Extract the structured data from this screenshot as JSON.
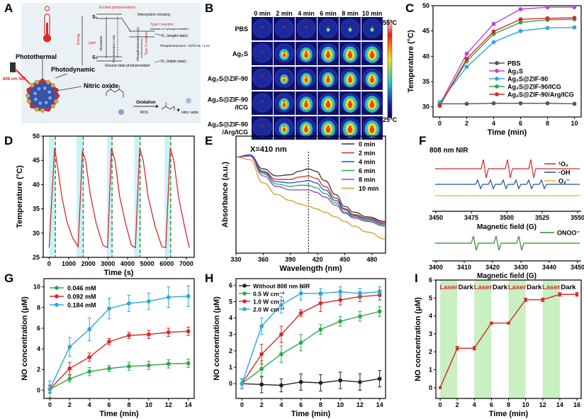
{
  "chart_data": [
    {
      "id": "A",
      "type": "diagram",
      "panel_label": "A",
      "labels": {
        "photothermal": "Photothermal",
        "photodynamic": "Photodynamic",
        "nitric_oxide": "Nitric oxide",
        "laser": "808 nm NIR",
        "s1": "S₁",
        "s0": "S₀",
        "excited": "Excited photosensitizer",
        "isc": "Intersystem crossing",
        "light": "Light",
        "absorption": "Absorption",
        "fluorescence": "Fluorescence (~ns)",
        "phosphorescence": "Phosphorescence (~μs)",
        "ground": "Ground state photosensitizer",
        "type1": "Type I reaction",
        "type1_sub": "(electron or hydrogen transfer)",
        "type2": "Type II reaction",
        "energy": "Energy",
        "o2_singlet": "¹O₂ (singlet state)",
        "o2_triplet": "³O₂ (triplet state)",
        "phos_detail": "Phosphorescence ~1270 nm ~1 ev",
        "oxidation": "Oxidation",
        "ros": "ROS",
        "no_label": "nitric oxide"
      }
    },
    {
      "id": "B",
      "type": "heatmap",
      "panel_label": "B",
      "time_labels": [
        "0 min",
        "2 min",
        "4 min",
        "6 min",
        "8 min",
        "10 min"
      ],
      "row_labels": [
        "PBS",
        "Ag₂S",
        "Ag₂S@ZIF-90",
        "Ag₂S@ZIF-90 /ICG",
        "Ag₂S@ZIF-90 /Arg/ICG"
      ],
      "intensity": [
        [
          0.0,
          0.03,
          0.05,
          0.07,
          0.08,
          0.09
        ],
        [
          0.0,
          0.55,
          0.75,
          0.85,
          0.88,
          0.9
        ],
        [
          0.0,
          0.45,
          0.65,
          0.75,
          0.8,
          0.8
        ],
        [
          0.0,
          0.6,
          0.8,
          0.88,
          0.9,
          0.9
        ],
        [
          0.0,
          0.6,
          0.78,
          0.88,
          0.9,
          0.92
        ]
      ],
      "colorbar_max": "55°C",
      "colorbar_min": "25°C"
    },
    {
      "id": "C",
      "type": "line",
      "panel_label": "C",
      "xlabel": "Time (min)",
      "ylabel": "Temperature (°C)",
      "xlim": [
        -0.5,
        10.5
      ],
      "ylim": [
        28,
        50
      ],
      "xticks": [
        0,
        2,
        4,
        6,
        8,
        10
      ],
      "yticks": [
        30,
        35,
        40,
        45,
        50
      ],
      "x": [
        0,
        2,
        4,
        6,
        8,
        10
      ],
      "series": [
        {
          "name": "PBS",
          "color": "#555555",
          "values": [
            30.6,
            30.6,
            30.7,
            30.7,
            30.7,
            30.6
          ]
        },
        {
          "name": "Ag₂S",
          "color": "#b845d8",
          "values": [
            30.5,
            40.5,
            46.4,
            49.3,
            49.7,
            49.7
          ]
        },
        {
          "name": "Ag₂S@ZIF-90",
          "color": "#2ca8d8",
          "values": [
            30.9,
            37.9,
            42.8,
            45.0,
            45.6,
            45.7
          ]
        },
        {
          "name": "Ag₂S@ZIF-90/ICG",
          "color": "#2ea84a",
          "values": [
            30.4,
            39.0,
            44.4,
            46.7,
            47.2,
            47.3
          ]
        },
        {
          "name": "Ag₂S@ZIF-90/Arg/ICG",
          "color": "#d82828",
          "values": [
            30.2,
            39.5,
            44.9,
            47.3,
            47.5,
            47.6
          ]
        }
      ]
    },
    {
      "id": "D",
      "type": "line",
      "panel_label": "D",
      "xlabel": "Time (s)",
      "ylabel": "Temperature (°C)",
      "xlim": [
        -300,
        7400
      ],
      "ylim": [
        25,
        50
      ],
      "xticks": [
        0,
        1000,
        2000,
        3000,
        4000,
        5000,
        6000,
        7000
      ],
      "yticks": [
        25,
        30,
        35,
        40,
        45,
        50
      ],
      "x": [
        0,
        280,
        420,
        650,
        900,
        1200,
        1480,
        1700,
        1860,
        2100,
        2400,
        2750,
        2980,
        3180,
        3360,
        3600,
        3900,
        4200,
        4400,
        4620,
        4800,
        5050,
        5400,
        5750,
        5950,
        6180,
        6360,
        6600,
        6900,
        7150
      ],
      "series": [
        {
          "name": "temperature",
          "color": "#d82828",
          "values": [
            27.0,
            47.5,
            44.0,
            37.5,
            32.5,
            29.0,
            27.2,
            47.0,
            45.0,
            38.0,
            32.0,
            27.5,
            27.0,
            47.5,
            45.0,
            37.5,
            32.0,
            27.5,
            27.0,
            47.5,
            45.0,
            37.5,
            31.5,
            27.2,
            27.0,
            47.5,
            45.0,
            37.5,
            31.5,
            27.0
          ]
        }
      ],
      "laser_on": [
        [
          0,
          320
        ],
        [
          1400,
          1740
        ],
        [
          2950,
          3210
        ],
        [
          4350,
          4640
        ],
        [
          5900,
          6200
        ]
      ],
      "dashed_lines": [
        320,
        1740,
        3210,
        4640,
        6200
      ]
    },
    {
      "id": "E",
      "type": "line",
      "panel_label": "E",
      "xlabel": "Wavelength (nm)",
      "ylabel": "Absorbance (a.u.)",
      "xlim": [
        330,
        495
      ],
      "ylim": [
        0,
        1
      ],
      "xticks": [
        330,
        360,
        390,
        420,
        450,
        480
      ],
      "annotation": "X=410 nm",
      "series": [
        {
          "name": "0 min",
          "color": "#333333",
          "x": [
            330,
            345,
            360,
            375,
            390,
            400,
            410,
            418,
            428,
            440,
            450,
            460,
            475,
            495
          ],
          "values": [
            0.82,
            0.84,
            0.72,
            0.66,
            0.67,
            0.7,
            0.72,
            0.7,
            0.62,
            0.5,
            0.4,
            0.35,
            0.31,
            0.27
          ]
        },
        {
          "name": "2 min",
          "color": "#d82828",
          "x": [
            330,
            345,
            360,
            375,
            390,
            400,
            410,
            418,
            428,
            440,
            450,
            460,
            475,
            495
          ],
          "values": [
            0.82,
            0.84,
            0.7,
            0.63,
            0.63,
            0.65,
            0.66,
            0.64,
            0.57,
            0.47,
            0.38,
            0.33,
            0.3,
            0.26
          ]
        },
        {
          "name": "4 min",
          "color": "#1f52c8",
          "x": [
            330,
            345,
            360,
            375,
            390,
            400,
            410,
            418,
            428,
            440,
            450,
            460,
            475,
            495
          ],
          "values": [
            0.82,
            0.84,
            0.69,
            0.61,
            0.6,
            0.61,
            0.62,
            0.6,
            0.54,
            0.45,
            0.37,
            0.32,
            0.29,
            0.25
          ]
        },
        {
          "name": "6 min",
          "color": "#2ea84a",
          "x": [
            330,
            345,
            360,
            375,
            390,
            400,
            410,
            418,
            428,
            440,
            450,
            460,
            475,
            495
          ],
          "values": [
            0.82,
            0.83,
            0.68,
            0.59,
            0.57,
            0.58,
            0.58,
            0.56,
            0.51,
            0.43,
            0.35,
            0.31,
            0.28,
            0.24
          ]
        },
        {
          "name": "8 min",
          "color": "#9b3fc8",
          "x": [
            330,
            345,
            360,
            375,
            390,
            400,
            410,
            418,
            428,
            440,
            450,
            460,
            475,
            495
          ],
          "values": [
            0.82,
            0.83,
            0.66,
            0.57,
            0.54,
            0.54,
            0.54,
            0.52,
            0.48,
            0.41,
            0.34,
            0.3,
            0.27,
            0.23
          ]
        },
        {
          "name": "10 min",
          "color": "#c8a028",
          "x": [
            330,
            345,
            360,
            375,
            390,
            400,
            410,
            418,
            428,
            440,
            450,
            460,
            475,
            495
          ],
          "values": [
            0.82,
            0.8,
            0.6,
            0.5,
            0.45,
            0.42,
            0.4,
            0.38,
            0.35,
            0.31,
            0.27,
            0.23,
            0.18,
            0.12
          ]
        }
      ]
    },
    {
      "id": "F",
      "type": "line",
      "panel_label": "F",
      "title": "808 nm NIR",
      "xlabel_top": "Magnetic field (G)",
      "xlabel_bottom": "Magnetic field (G)",
      "top_xticks": [
        3450,
        3475,
        3500,
        3525,
        3550
      ],
      "bottom_xticks": [
        3400,
        3410,
        3420,
        3430,
        3440,
        3450
      ],
      "legend_top": [
        {
          "name": "¹O₂",
          "color": "#d82828"
        },
        {
          "name": "·OH",
          "color": "#1f52a8"
        },
        {
          "name": "O₂⁻",
          "color": "#e8b020"
        }
      ],
      "legend_bottom": [
        {
          "name": "ONOO⁻",
          "color": "#2a8a2a"
        }
      ]
    },
    {
      "id": "G",
      "type": "line",
      "panel_label": "G",
      "xlabel": "Time (min)",
      "ylabel": "NO concentration (μM)",
      "xlim": [
        -0.6,
        14.6
      ],
      "ylim": [
        -0.8,
        10.8
      ],
      "xticks": [
        0,
        2,
        4,
        6,
        8,
        10,
        12,
        14
      ],
      "yticks": [
        0,
        2,
        4,
        6,
        8,
        10
      ],
      "x": [
        0,
        2,
        4,
        6,
        8,
        10,
        12,
        14
      ],
      "series": [
        {
          "name": "0.046 mM",
          "color": "#2ea84a",
          "values": [
            0.1,
            1.1,
            1.8,
            2.1,
            2.3,
            2.4,
            2.55,
            2.6
          ],
          "err": [
            0.3,
            0.3,
            0.4,
            0.3,
            0.4,
            0.4,
            0.4,
            0.4
          ]
        },
        {
          "name": "0.092 mM",
          "color": "#d82828",
          "values": [
            0.1,
            2.1,
            3.2,
            4.7,
            5.3,
            5.4,
            5.6,
            5.7
          ],
          "err": [
            0.4,
            0.6,
            0.4,
            0.3,
            0.3,
            0.4,
            0.4,
            0.4
          ]
        },
        {
          "name": "0.184 mM",
          "color": "#2ca8d8",
          "values": [
            0.1,
            4.2,
            5.9,
            7.9,
            8.4,
            8.6,
            9.0,
            9.1
          ],
          "err": [
            0.8,
            0.9,
            1.1,
            1.0,
            0.8,
            0.8,
            1.0,
            1.0
          ]
        }
      ]
    },
    {
      "id": "H",
      "type": "line",
      "panel_label": "H",
      "xlabel": "Time (min)",
      "ylabel": "NO concentration (μM)",
      "xlim": [
        -0.6,
        14.6
      ],
      "ylim": [
        -0.9,
        6.4
      ],
      "xticks": [
        0,
        2,
        4,
        6,
        8,
        10,
        12,
        14
      ],
      "yticks": [
        0,
        1,
        2,
        3,
        4,
        5,
        6
      ],
      "x": [
        0,
        2,
        4,
        6,
        8,
        10,
        12,
        14
      ],
      "series": [
        {
          "name": "Without 808 nm NIR",
          "color": "#222222",
          "values": [
            0.0,
            -0.05,
            -0.1,
            0.1,
            0.05,
            0.2,
            0.1,
            0.3
          ],
          "err": [
            0.3,
            0.5,
            0.4,
            0.5,
            0.5,
            0.5,
            0.5,
            0.5
          ]
        },
        {
          "name": "0.5 W cm⁻²",
          "color": "#2ea84a",
          "values": [
            0.0,
            0.9,
            1.8,
            2.5,
            3.3,
            3.8,
            4.1,
            4.4
          ],
          "err": [
            0.3,
            0.5,
            0.5,
            0.5,
            0.3,
            0.3,
            0.3,
            0.3
          ]
        },
        {
          "name": "1.0 W cm⁻²",
          "color": "#d82828",
          "values": [
            0.0,
            1.8,
            3.0,
            4.3,
            4.9,
            5.1,
            5.3,
            5.4
          ],
          "err": [
            0.3,
            0.6,
            0.5,
            0.2,
            0.5,
            0.3,
            0.3,
            0.3
          ]
        },
        {
          "name": "2.0 W cm⁻²",
          "color": "#2ca8d8",
          "values": [
            0.0,
            3.5,
            4.8,
            5.5,
            5.5,
            5.6,
            5.5,
            5.6
          ],
          "err": [
            0.3,
            0.5,
            0.5,
            0.4,
            0.3,
            0.3,
            0.3,
            0.3
          ]
        }
      ]
    },
    {
      "id": "I",
      "type": "line",
      "panel_label": "I",
      "xlabel": "Time (min)",
      "ylabel": "NO concentration (μM)",
      "xlim": [
        -0.5,
        16.5
      ],
      "ylim": [
        -0.6,
        6
      ],
      "xticks": [
        0,
        2,
        4,
        6,
        8,
        10,
        12,
        14,
        16
      ],
      "yticks": [
        0,
        1,
        2,
        3,
        4,
        5,
        6
      ],
      "x": [
        0,
        2,
        4,
        6,
        8,
        10,
        12,
        14,
        16
      ],
      "series": [
        {
          "name": "NO",
          "color": "#d82828",
          "values": [
            0.0,
            2.2,
            2.2,
            3.6,
            3.6,
            4.9,
            4.9,
            5.2,
            5.2
          ],
          "err": [
            0,
            0.1,
            0.1,
            0.05,
            0.05,
            0.1,
            0.1,
            0.1,
            0.1
          ]
        }
      ],
      "laser_on": [
        [
          0,
          2
        ],
        [
          4,
          6
        ],
        [
          8,
          10
        ],
        [
          12,
          14
        ]
      ],
      "laser_label": "Laser",
      "dark_label": "Dark",
      "band_color": "#c8f0c0"
    }
  ]
}
